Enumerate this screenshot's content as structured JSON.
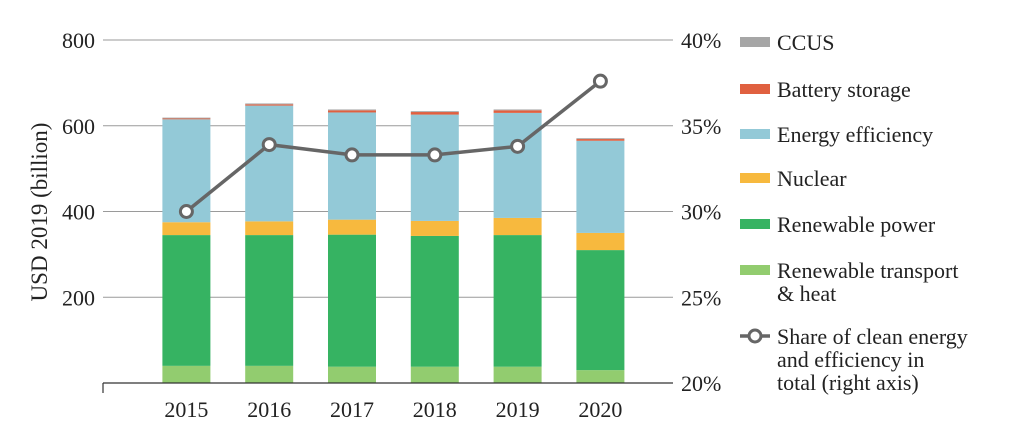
{
  "chart_data": {
    "type": "bar",
    "stacked": true,
    "categories": [
      "2015",
      "2016",
      "2017",
      "2018",
      "2019",
      "2020"
    ],
    "ylabel": "USD 2019 (billion)",
    "ylim": [
      0,
      800
    ],
    "yticks": [
      "200",
      "400",
      "600",
      "800"
    ],
    "y2lim": [
      20,
      40
    ],
    "y2ticks": [
      "20%",
      "25%",
      "30%",
      "35%",
      "40%"
    ],
    "grid": true,
    "legend_position": "right",
    "series": [
      {
        "name": "Renewable transport & heat",
        "name_lines": [
          "Renewable transport",
          "& heat"
        ],
        "color": "#92cc6f",
        "values": [
          40,
          40,
          38,
          38,
          38,
          30
        ]
      },
      {
        "name": "Renewable power",
        "color": "#36b362",
        "values": [
          305,
          305,
          308,
          305,
          307,
          280
        ]
      },
      {
        "name": "Nuclear",
        "color": "#f7b93e",
        "values": [
          30,
          32,
          35,
          35,
          40,
          40
        ]
      },
      {
        "name": "Energy efficiency",
        "color": "#93c9d7",
        "values": [
          240,
          270,
          250,
          248,
          245,
          215
        ]
      },
      {
        "name": "Battery storage",
        "color": "#e06040",
        "values": [
          2,
          3,
          5,
          6,
          6,
          4
        ]
      },
      {
        "name": "CCUS",
        "color": "#a6a6a6",
        "values": [
          2,
          2,
          2,
          2,
          2,
          2
        ]
      }
    ],
    "line_series": {
      "name": "Share of clean energy and efficiency in total (right axis)",
      "name_lines": [
        "Share of clean energy",
        "and efficiency in",
        "total (right axis)"
      ],
      "color": "#666666",
      "values": [
        30,
        33.9,
        33.3,
        33.3,
        33.8,
        37.6
      ]
    }
  }
}
